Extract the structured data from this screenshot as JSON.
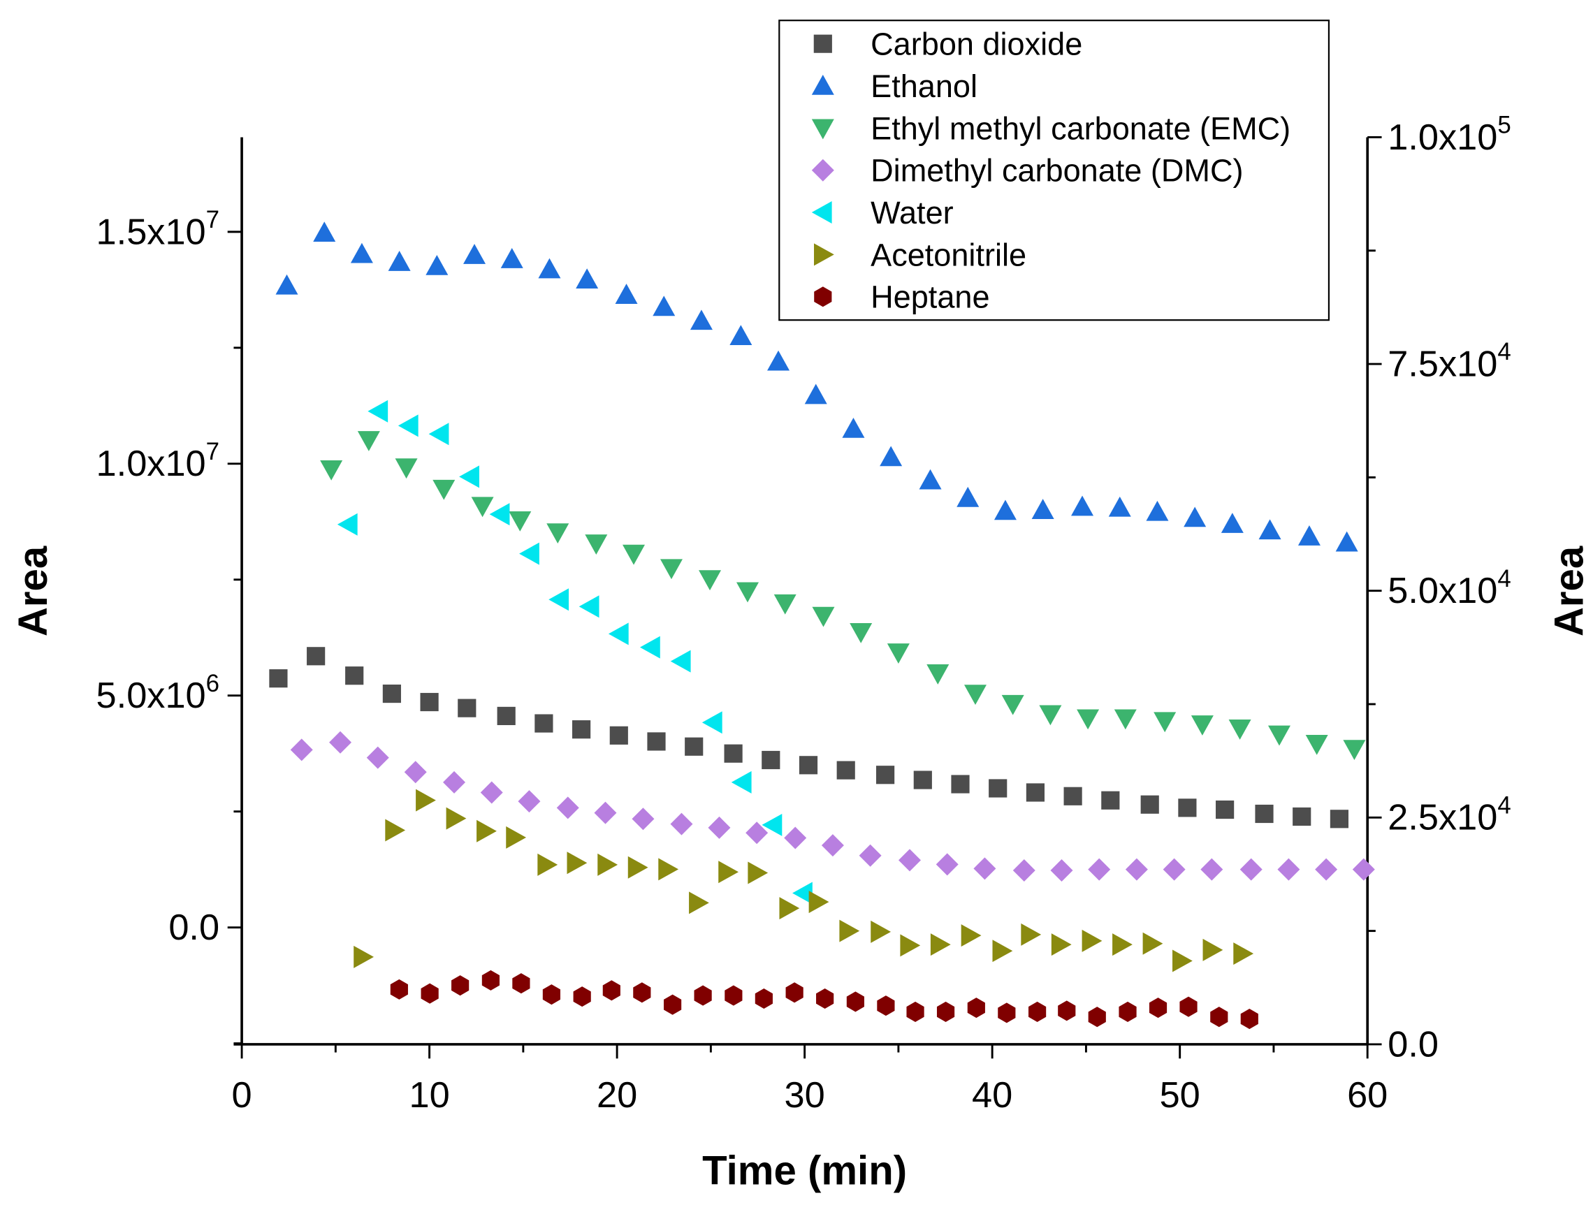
{
  "chart_data": {
    "type": "scatter",
    "xlabel": "Time (min)",
    "ylabel": "Area",
    "y2label": "Area",
    "xlim": [
      0,
      60
    ],
    "ylim": [
      -2520000,
      17040000
    ],
    "y2lim": [
      0,
      100000
    ],
    "xticks": [
      "0",
      "10",
      "20",
      "30",
      "40",
      "50",
      "60"
    ],
    "yticks": [
      {
        "base": "0.0",
        "exp": ""
      },
      {
        "base": "5.0x10",
        "exp": "6"
      },
      {
        "base": "1.0x10",
        "exp": "7"
      },
      {
        "base": "1.5x10",
        "exp": "7"
      }
    ],
    "y2ticks": [
      {
        "base": "0.0",
        "exp": ""
      },
      {
        "base": "2.5x10",
        "exp": "4"
      },
      {
        "base": "5.0x10",
        "exp": "4"
      },
      {
        "base": "7.5x10",
        "exp": "4"
      },
      {
        "base": "1.0x10",
        "exp": "5"
      }
    ],
    "legend_position": "top-right",
    "series": [
      {
        "name": "Carbon dioxide",
        "marker": "square",
        "color": "#4d4d4d",
        "axis": "left",
        "x": [
          1.95,
          3.95,
          6.0,
          8.0,
          10.0,
          12.0,
          14.1,
          16.1,
          18.1,
          20.1,
          22.1,
          24.1,
          26.2,
          28.2,
          30.2,
          32.2,
          34.3,
          36.3,
          38.3,
          40.3,
          42.3,
          44.3,
          46.3,
          48.4,
          50.4,
          52.4,
          54.5,
          56.5,
          58.5
        ],
        "y": [
          5370000,
          5850000,
          5430000,
          5040000,
          4860000,
          4730000,
          4560000,
          4400000,
          4270000,
          4140000,
          4010000,
          3900000,
          3750000,
          3610000,
          3500000,
          3390000,
          3290000,
          3180000,
          3090000,
          3000000,
          2910000,
          2830000,
          2740000,
          2650000,
          2580000,
          2540000,
          2450000,
          2390000,
          2340000
        ]
      },
      {
        "name": "Ethanol",
        "marker": "triangle-up",
        "color": "#1e6fdc",
        "axis": "left",
        "x": [
          2.4,
          4.4,
          6.4,
          8.4,
          10.4,
          12.4,
          14.4,
          16.4,
          18.4,
          20.5,
          22.5,
          24.5,
          26.6,
          28.6,
          30.6,
          32.6,
          34.6,
          36.7,
          38.7,
          40.7,
          42.7,
          44.8,
          46.8,
          48.8,
          50.8,
          52.8,
          54.8,
          56.9,
          58.9
        ],
        "y": [
          13840000,
          14980000,
          14520000,
          14350000,
          14260000,
          14500000,
          14410000,
          14190000,
          13970000,
          13640000,
          13380000,
          13080000,
          12750000,
          12200000,
          11480000,
          10750000,
          10140000,
          9640000,
          9260000,
          8980000,
          9000000,
          9070000,
          9050000,
          8960000,
          8830000,
          8700000,
          8560000,
          8430000,
          8300000
        ]
      },
      {
        "name": "Ethyl methyl carbonate (EMC)",
        "marker": "triangle-down",
        "color": "#3cb46e",
        "axis": "left",
        "x": [
          4.77,
          6.77,
          8.77,
          10.77,
          12.83,
          14.83,
          16.84,
          18.89,
          20.89,
          22.9,
          24.95,
          26.96,
          28.96,
          31.0,
          33.0,
          35.0,
          37.1,
          39.1,
          41.1,
          43.1,
          45.1,
          47.1,
          49.2,
          51.2,
          53.2,
          55.3,
          57.3,
          59.3
        ],
        "y": [
          9880000,
          10510000,
          9920000,
          9460000,
          9090000,
          8780000,
          8520000,
          8280000,
          8060000,
          7750000,
          7510000,
          7250000,
          6990000,
          6720000,
          6370000,
          5930000,
          5480000,
          5040000,
          4820000,
          4600000,
          4510000,
          4510000,
          4450000,
          4380000,
          4290000,
          4160000,
          3960000,
          3850000
        ]
      },
      {
        "name": "Dimethyl carbonate (DMC)",
        "marker": "diamond",
        "color": "#b87fe0",
        "axis": "left",
        "x": [
          3.19,
          5.25,
          7.25,
          9.26,
          11.32,
          13.32,
          15.32,
          17.38,
          19.38,
          21.39,
          23.44,
          25.45,
          27.45,
          29.5,
          31.5,
          33.5,
          35.6,
          37.6,
          39.6,
          41.7,
          43.7,
          45.7,
          47.7,
          49.7,
          51.7,
          53.8,
          55.8,
          57.8,
          59.8
        ],
        "y": [
          3830000,
          3990000,
          3660000,
          3350000,
          3130000,
          2910000,
          2720000,
          2580000,
          2470000,
          2340000,
          2230000,
          2150000,
          2040000,
          1930000,
          1770000,
          1550000,
          1450000,
          1360000,
          1270000,
          1230000,
          1230000,
          1250000,
          1250000,
          1250000,
          1250000,
          1250000,
          1250000,
          1250000,
          1250000
        ]
      },
      {
        "name": "Water",
        "marker": "triangle-left",
        "color": "#00e5ee",
        "axis": "left",
        "x": [
          5.69,
          7.31,
          8.93,
          10.56,
          12.18,
          13.8,
          15.38,
          16.95,
          18.57,
          20.14,
          21.82,
          23.45,
          25.13,
          26.69,
          28.32,
          29.94
        ],
        "y": [
          8690000,
          11130000,
          10820000,
          10640000,
          9720000,
          8910000,
          8060000,
          7070000,
          6920000,
          6330000,
          6040000,
          5740000,
          4420000,
          3130000,
          2210000,
          740000
        ]
      },
      {
        "name": "Acetonitrile",
        "marker": "triangle-right",
        "color": "#8a8a10",
        "axis": "right",
        "x": [
          6.44,
          8.12,
          9.75,
          11.37,
          12.99,
          14.56,
          16.24,
          17.81,
          19.44,
          21.06,
          22.68,
          24.31,
          25.88,
          27.45,
          29.13,
          30.7,
          32.33,
          34.0,
          35.57,
          37.19,
          38.82,
          40.49,
          42.01,
          43.63,
          45.26,
          46.88,
          48.5,
          50.08,
          51.7,
          53.33
        ],
        "y": [
          9630,
          23600,
          26900,
          24900,
          23500,
          22800,
          19800,
          20000,
          19800,
          19500,
          19300,
          15600,
          19000,
          18900,
          15000,
          15700,
          12500,
          12400,
          10900,
          11000,
          12000,
          10300,
          12100,
          11000,
          11400,
          11000,
          11100,
          9200,
          10400,
          10000
        ]
      },
      {
        "name": "Heptane",
        "marker": "hexagon",
        "color": "#800000",
        "axis": "right",
        "x": [
          8.39,
          10.02,
          11.64,
          13.27,
          14.89,
          16.51,
          18.14,
          19.71,
          21.33,
          22.96,
          24.58,
          26.21,
          27.83,
          29.46,
          31.08,
          32.71,
          34.33,
          35.9,
          37.52,
          39.15,
          40.77,
          42.4,
          43.97,
          45.59,
          47.22,
          48.84,
          50.46,
          52.09,
          53.71
        ],
        "y": [
          6050,
          5600,
          6490,
          7050,
          6720,
          5490,
          5260,
          5940,
          5710,
          4370,
          5380,
          5380,
          5040,
          5710,
          5040,
          4700,
          4260,
          3580,
          3580,
          4030,
          3470,
          3580,
          3700,
          3020,
          3580,
          4030,
          4140,
          3020,
          2800
        ]
      }
    ]
  }
}
